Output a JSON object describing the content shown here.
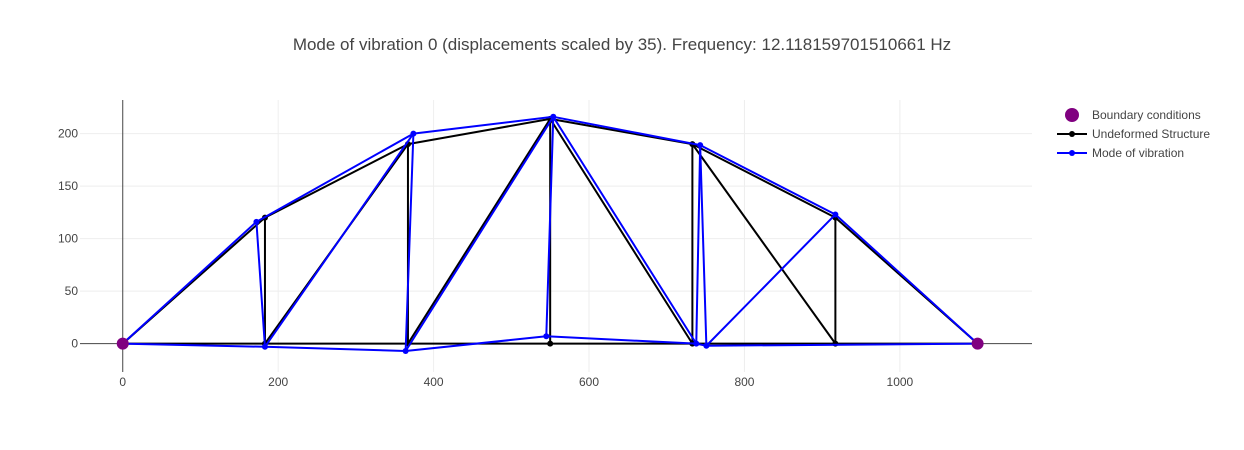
{
  "chart_data": {
    "type": "line",
    "title": "Mode of vibration 0 (displacements scaled by 35). Frequency: 12.118159701510661 Hz",
    "xlabel": "",
    "ylabel": "",
    "xlim": [
      -55,
      1170
    ],
    "ylim": [
      -27,
      232
    ],
    "xticks": [
      0,
      200,
      400,
      600,
      800,
      1000
    ],
    "yticks": [
      0,
      50,
      100,
      150,
      200
    ],
    "grid": true,
    "legend_position": "top-right",
    "colors": {
      "boundary": "#800080",
      "undeformed": "#000000",
      "mode": "#0000ff",
      "grid": "#eeeeee",
      "axis": "#444444"
    },
    "series": [
      {
        "name": "Boundary conditions",
        "kind": "markers",
        "x": [
          0,
          1100
        ],
        "y": [
          0,
          0
        ]
      },
      {
        "name": "Undeformed Structure",
        "kind": "lines+markers",
        "nodes": {
          "x": [
            0,
            183,
            367,
            550,
            733,
            917,
            1100,
            183,
            367,
            550,
            733,
            917
          ],
          "y": [
            0,
            0,
            0,
            0,
            0,
            0,
            0,
            120,
            190,
            214,
            190,
            120
          ]
        },
        "members": [
          [
            0,
            1
          ],
          [
            1,
            2
          ],
          [
            2,
            3
          ],
          [
            3,
            4
          ],
          [
            4,
            5
          ],
          [
            5,
            6
          ],
          [
            0,
            7
          ],
          [
            7,
            8
          ],
          [
            8,
            9
          ],
          [
            9,
            10
          ],
          [
            10,
            11
          ],
          [
            11,
            6
          ],
          [
            1,
            7
          ],
          [
            2,
            8
          ],
          [
            3,
            9
          ],
          [
            4,
            10
          ],
          [
            5,
            11
          ],
          [
            1,
            8
          ],
          [
            2,
            9
          ],
          [
            9,
            4
          ],
          [
            10,
            5
          ]
        ]
      },
      {
        "name": "Mode of vibration",
        "kind": "lines+markers",
        "nodes": {
          "x": [
            0,
            183,
            364,
            545,
            738,
            751,
            1100,
            172,
            374,
            554,
            743,
            917
          ],
          "y": [
            0,
            -3,
            -7,
            7,
            0,
            -2,
            0,
            116,
            200,
            216,
            189,
            123
          ]
        },
        "members": [
          [
            0,
            1
          ],
          [
            1,
            2
          ],
          [
            2,
            3
          ],
          [
            3,
            4
          ],
          [
            4,
            5
          ],
          [
            5,
            6
          ],
          [
            0,
            7
          ],
          [
            7,
            8
          ],
          [
            8,
            9
          ],
          [
            9,
            10
          ],
          [
            10,
            11
          ],
          [
            11,
            6
          ],
          [
            1,
            7
          ],
          [
            2,
            8
          ],
          [
            3,
            9
          ],
          [
            4,
            10
          ],
          [
            5,
            11
          ],
          [
            1,
            8
          ],
          [
            2,
            9
          ],
          [
            9,
            4
          ],
          [
            10,
            5
          ]
        ]
      }
    ]
  }
}
